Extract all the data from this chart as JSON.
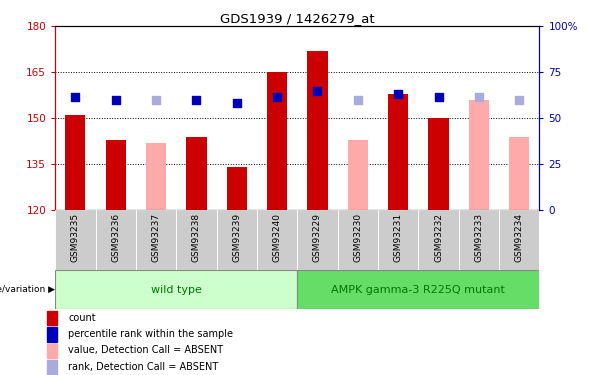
{
  "title": "GDS1939 / 1426279_at",
  "samples": [
    "GSM93235",
    "GSM93236",
    "GSM93237",
    "GSM93238",
    "GSM93239",
    "GSM93240",
    "GSM93229",
    "GSM93230",
    "GSM93231",
    "GSM93232",
    "GSM93233",
    "GSM93234"
  ],
  "red_values": [
    151,
    143,
    null,
    144,
    134,
    165,
    172,
    null,
    158,
    150,
    null,
    null
  ],
  "pink_values": [
    null,
    null,
    142,
    null,
    null,
    null,
    null,
    143,
    null,
    null,
    156,
    144
  ],
  "blue_dots": [
    157,
    156,
    null,
    156,
    155,
    157,
    159,
    null,
    158,
    157,
    null,
    null
  ],
  "lightblue_dots": [
    null,
    null,
    156,
    null,
    null,
    null,
    null,
    156,
    null,
    null,
    157,
    156
  ],
  "ylim_left": [
    120,
    180
  ],
  "ylim_right": [
    0,
    100
  ],
  "yticks_left": [
    120,
    135,
    150,
    165,
    180
  ],
  "yticks_right": [
    0,
    25,
    50,
    75,
    100
  ],
  "ytick_right_labels": [
    "0",
    "25",
    "50",
    "75",
    "100%"
  ],
  "grid_values": [
    135,
    150,
    165
  ],
  "bar_bottom": 120,
  "group1_light_color": "#ccffcc",
  "group2_dark_color": "#66dd66",
  "group_label_color": "#007700",
  "red_bar_color": "#cc0000",
  "pink_bar_color": "#ffaaaa",
  "blue_dot_color": "#0000bb",
  "lightblue_dot_color": "#aaaadd",
  "axis_left_color": "#cc0000",
  "axis_right_color": "#0000bb",
  "bg_color": "#ffffff",
  "plot_bg": "#ffffff",
  "sample_band_color": "#cccccc",
  "legend_items": [
    {
      "label": "count",
      "color": "#cc0000"
    },
    {
      "label": "percentile rank within the sample",
      "color": "#0000bb"
    },
    {
      "label": "value, Detection Call = ABSENT",
      "color": "#ffaaaa"
    },
    {
      "label": "rank, Detection Call = ABSENT",
      "color": "#aaaadd"
    }
  ],
  "xlabel_bottom": "genotype/variation",
  "wild_type_label": "wild type",
  "mutant_label": "AMPK gamma-3 R225Q mutant",
  "n_wild": 6,
  "n_mutant": 6
}
